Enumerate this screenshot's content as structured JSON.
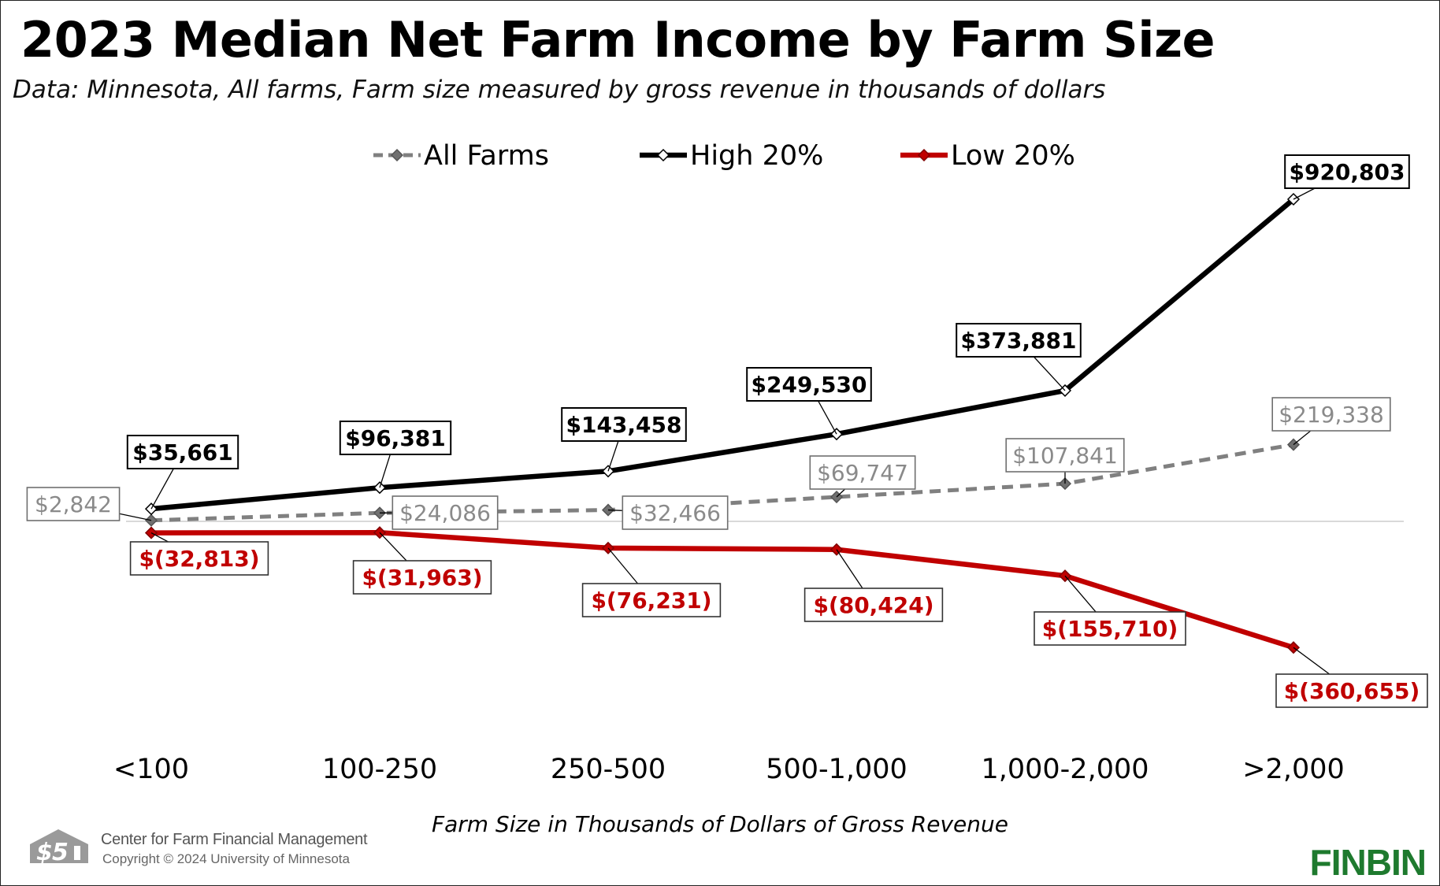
{
  "page": {
    "title": "2023 Median Net Farm Income by Farm Size",
    "subtitle": "Data: Minnesota, All farms, Farm size measured by gross revenue in thousands of dollars",
    "footer_org": "Center for Farm Financial Management",
    "footer_copyright": "Copyright © 2024 University of Minnesota",
    "brand": "FINBIN",
    "logo_icon": "cffm-logo-icon"
  },
  "chart_data": {
    "type": "line",
    "title": "2023 Median Net Farm Income by Farm Size",
    "subtitle": "Data: Minnesota, All farms, Farm size measured by gross revenue in thousands of dollars",
    "xlabel": "Farm Size in Thousands of Dollars of Gross Revenue",
    "ylabel": "",
    "categories": [
      "<100",
      "100-250",
      "250-500",
      "500-1,000",
      "1,000-2,000",
      ">2,000"
    ],
    "ylim": [
      -450000,
      1000000
    ],
    "grid": false,
    "legend": "top-center",
    "series": [
      {
        "name": "All Farms",
        "values": [
          2842,
          24086,
          32466,
          69747,
          107841,
          219338
        ],
        "labels": [
          "$2,842",
          "$24,086",
          "$32,466",
          "$69,747",
          "$107,841",
          "$219,338"
        ],
        "color": "#808080",
        "line_style": "dashed"
      },
      {
        "name": "High 20%",
        "values": [
          35661,
          96381,
          143458,
          249530,
          373881,
          920803
        ],
        "labels": [
          "$35,661",
          "$96,381",
          "$143,458",
          "$249,530",
          "$373,881",
          "$920,803"
        ],
        "color": "#000000",
        "line_style": "solid"
      },
      {
        "name": "Low 20%",
        "values": [
          -32813,
          -31963,
          -76231,
          -80424,
          -155710,
          -360655
        ],
        "labels": [
          "$(32,813)",
          "$(31,963)",
          "$(76,231)",
          "$(80,424)",
          "$(155,710)",
          "$(360,655)"
        ],
        "color": "#c00000",
        "line_style": "solid"
      }
    ]
  }
}
